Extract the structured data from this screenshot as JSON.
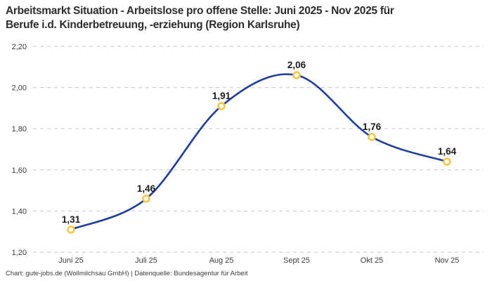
{
  "header": {
    "title_line1": "Arbeitsmarkt Situation - Arbeitslose pro offene Stelle: Juni 2025 - Nov 2025 für",
    "title_line2": "Berufe i.d. Kinderbetreuung, -erziehung (Region Karlsruhe)"
  },
  "footer": {
    "attribution": "Chart: gute-jobs.de (Wollmilchsau GmbH) | Datenquelle: Bundesagentur für Arbeit"
  },
  "chart_data": {
    "type": "line",
    "title": "Arbeitsmarkt Situation - Arbeitslose pro offene Stelle: Juni 2025 - Nov 2025 für Berufe i.d. Kinderbetreuung, -erziehung (Region Karlsruhe)",
    "xlabel": "",
    "ylabel": "",
    "legend": "none",
    "grid": "horizontal-dashed",
    "categories": [
      "Juni 25",
      "Juli 25",
      "Aug 25",
      "Sept 25",
      "Okt 25",
      "Nov 25"
    ],
    "values": [
      1.31,
      1.46,
      1.91,
      2.06,
      1.76,
      1.64
    ],
    "value_labels": [
      "1,31",
      "1,46",
      "1,91",
      "2,06",
      "1,76",
      "1,64"
    ],
    "ylim": [
      1.2,
      2.2
    ],
    "yticks": [
      {
        "value": 1.2,
        "label": "1,20"
      },
      {
        "value": 1.4,
        "label": "1,40"
      },
      {
        "value": 1.6,
        "label": "1,60"
      },
      {
        "value": 1.8,
        "label": "1,80"
      },
      {
        "value": 2.0,
        "label": "2,00"
      },
      {
        "value": 2.2,
        "label": "2,20"
      }
    ],
    "colors": {
      "line": "#1f3d99",
      "marker_stroke": "#f9c440",
      "marker_fill": "#ffffff",
      "grid": "#c6c6c6",
      "text": "#2d2d2d"
    }
  }
}
